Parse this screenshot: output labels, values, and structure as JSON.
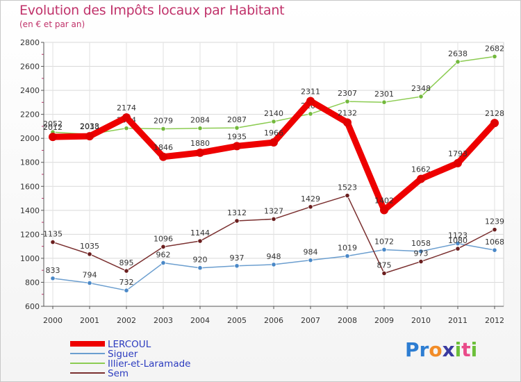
{
  "header": {
    "title": "Evolution des Impôts locaux par Habitant",
    "subtitle": "(en € et par an)"
  },
  "logo": {
    "text": "Proxiti",
    "letters": [
      "P",
      "r",
      "o",
      "x",
      "i",
      "t",
      "i"
    ],
    "letter_colors": [
      "#2d7dd2",
      "#2d7dd2",
      "#f28c28",
      "#3a3aa0",
      "#6cbf3a",
      "#e94b8a",
      "#6cbf3a"
    ]
  },
  "chart_data": {
    "type": "line",
    "title": "Evolution des Impôts locaux par Habitant",
    "subtitle": "(en € et par an)",
    "xlabel": "",
    "ylabel": "",
    "x": [
      "2000",
      "2001",
      "2002",
      "2003",
      "2004",
      "2005",
      "2006",
      "2007",
      "2008",
      "2009",
      "2010",
      "2011",
      "2012"
    ],
    "ylim": [
      600,
      2800
    ],
    "yticks": [
      "600",
      "800",
      "1000",
      "1200",
      "1400",
      "1600",
      "1800",
      "2000",
      "2200",
      "2400",
      "2600",
      "2800"
    ],
    "grid": true,
    "legend_position": "bottom-left",
    "series": [
      {
        "name": "Illier-et-Laramade",
        "color": "#8ccc52",
        "marker_color": "#72b83c",
        "values": [
          2052,
          2033,
          2084,
          2079,
          2084,
          2087,
          2140,
          2204,
          2307,
          2301,
          2348,
          2638,
          2682
        ],
        "labels": [
          "2052",
          "2033",
          "2084",
          "2079",
          "2084",
          "2087",
          "2140",
          "2204",
          "2307",
          "2301",
          "2348",
          "2638",
          "2682"
        ]
      },
      {
        "name": "Siguer",
        "color": "#6b9ecf",
        "marker_color": "#4a88c7",
        "values": [
          833,
          794,
          732,
          962,
          920,
          937,
          948,
          984,
          1019,
          1072,
          1058,
          1123,
          1068
        ],
        "labels": [
          "833",
          "794",
          "732",
          "962",
          "920",
          "937",
          "948",
          "984",
          "1019",
          "1072",
          "1058",
          "1123",
          "1068"
        ]
      },
      {
        "name": "Sem",
        "color": "#7a2f2f",
        "marker_color": "#6a1e1e",
        "values": [
          1135,
          1035,
          895,
          1096,
          1144,
          1312,
          1327,
          1429,
          1523,
          875,
          973,
          1080,
          1239
        ],
        "labels": [
          "1135",
          "1035",
          "895",
          "1096",
          "1144",
          "1312",
          "1327",
          "1429",
          "1523",
          "875",
          "973",
          "1080",
          "1239"
        ]
      },
      {
        "name": "LERCOUL",
        "color": "#ee0000",
        "marker_color": "#e00000",
        "values": [
          2012,
          2018,
          2174,
          1846,
          1880,
          1935,
          1966,
          2311,
          2132,
          1402,
          1662,
          1793,
          2128
        ],
        "labels": [
          "2012",
          "2018",
          "2174",
          "1846",
          "1880",
          "1935",
          "1966",
          "2311",
          "2132",
          "1402",
          "1662",
          "1793",
          "2128"
        ]
      }
    ],
    "legend": [
      {
        "name": "LERCOUL",
        "color": "#ee0000"
      },
      {
        "name": "Siguer",
        "color": "#6b9ecf"
      },
      {
        "name": "Illier-et-Laramade",
        "color": "#8ccc52"
      },
      {
        "name": "Sem",
        "color": "#7a2f2f"
      }
    ]
  }
}
